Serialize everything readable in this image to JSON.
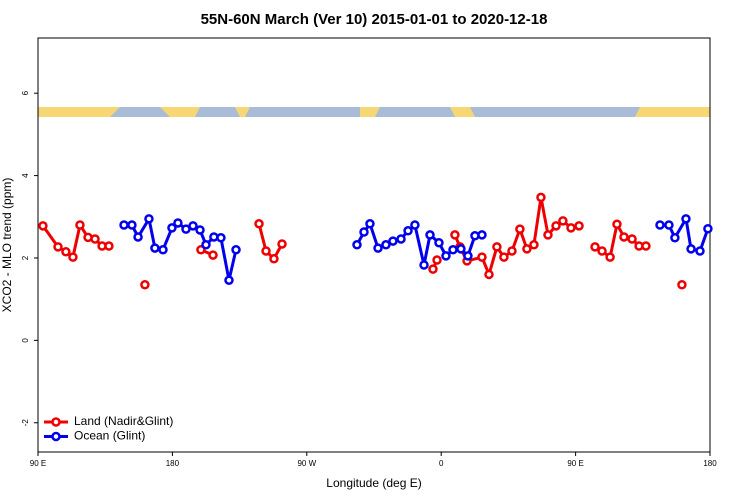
{
  "chart_data": {
    "type": "line",
    "title": "55N-60N March (Ver 10)   2015-01-01 to 2020-12-18",
    "xlabel": "Longitude (deg E)",
    "ylabel": "XCO2 - MLO trend (ppm)",
    "xlim": [
      90,
      540
    ],
    "ylim": [
      -2.71,
      7.34
    ],
    "xticks": [
      {
        "value": 90,
        "label": "90 E"
      },
      180,
      {
        "value": 270,
        "label": "90 W"
      },
      {
        "value": 360,
        "label": "0"
      },
      {
        "value": 450,
        "label": "90 E"
      },
      {
        "value": 540,
        "label": "180"
      }
    ],
    "yticks": [
      -2,
      0,
      2,
      4,
      6
    ],
    "legend": "bottom-left",
    "series": [
      {
        "name": "Land (Nadir&Glint)",
        "color": "#ee0000",
        "x": [
          93.3,
          103.4,
          108.7,
          113.4,
          118.1,
          123.5,
          128.2,
          132.9,
          137.5,
          150,
          161.6,
          180,
          199.1,
          207.2,
          225,
          238.0,
          242.7,
          248.0,
          253.4,
          300,
          354.5,
          357.2,
          365,
          369.2,
          372.6,
          377.3,
          387.3,
          392.0,
          397.3,
          402.0,
          407.4,
          412.7,
          417.4,
          422.1,
          426.8,
          431.5,
          436.9,
          441.5,
          446.9,
          452.3,
          460,
          463.0,
          467.7,
          473.1,
          477.7,
          482.4,
          487.8,
          492.5,
          497.1,
          510,
          521.2
        ],
        "values": [
          2.78,
          2.27,
          2.15,
          2.02,
          2.8,
          2.5,
          2.46,
          2.29,
          2.29,
          null,
          1.35,
          null,
          2.2,
          2.07,
          null,
          2.83,
          2.17,
          1.98,
          2.34,
          null,
          1.73,
          1.95,
          null,
          2.56,
          2.27,
          1.93,
          2.02,
          1.6,
          2.27,
          2.02,
          2.17,
          2.7,
          2.22,
          2.32,
          3.47,
          2.56,
          2.78,
          2.9,
          2.73,
          2.78,
          null,
          2.27,
          2.17,
          2.02,
          2.82,
          2.51,
          2.46,
          2.29,
          2.29,
          null,
          1.35
        ]
      },
      {
        "name": "Ocean (Glint)",
        "color": "#0000ee",
        "x": [
          147.6,
          152.9,
          157.0,
          164.3,
          168.3,
          173.7,
          179.7,
          183.7,
          189.1,
          193.8,
          198.5,
          202.5,
          207.8,
          212.5,
          217.9,
          222.6,
          260,
          303.6,
          308.3,
          312.3,
          317.7,
          323.0,
          327.7,
          333.1,
          337.8,
          342.4,
          348.5,
          352.5,
          358.5,
          363.2,
          367.9,
          373.2,
          377.9,
          382.6,
          387.3,
          450,
          506.5,
          512.5,
          516.5,
          523.9,
          527.3,
          533.3,
          538.6
        ],
        "values": [
          2.8,
          2.8,
          2.51,
          2.95,
          2.24,
          2.2,
          2.73,
          2.85,
          2.7,
          2.78,
          2.68,
          2.32,
          2.51,
          2.49,
          1.46,
          2.2,
          null,
          2.32,
          2.63,
          2.83,
          2.24,
          2.32,
          2.41,
          2.46,
          2.66,
          2.8,
          1.83,
          2.56,
          2.37,
          2.05,
          2.2,
          2.22,
          2.05,
          2.54,
          2.56,
          null,
          2.8,
          2.8,
          2.49,
          2.95,
          2.22,
          2.17,
          2.71
        ]
      }
    ]
  }
}
